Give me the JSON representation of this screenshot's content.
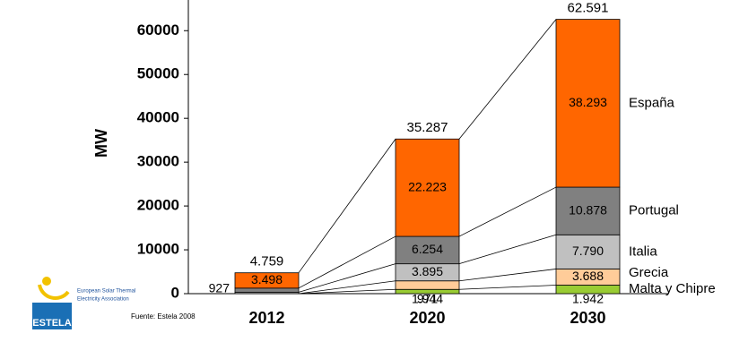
{
  "chart_data": {
    "type": "stacked_bar",
    "y_label": "MW",
    "categories": [
      "2012",
      "2020",
      "2030"
    ],
    "series": [
      {
        "name": "Malta y Chipre",
        "color": "#99cc33",
        "values": [
          0,
          971,
          1942
        ],
        "value_labels": [
          null,
          "971",
          "1.942"
        ]
      },
      {
        "name": "Grecia",
        "color": "#ffcc99",
        "values": [
          0,
          1944,
          3688
        ],
        "value_labels": [
          null,
          "1.944",
          "3.688"
        ]
      },
      {
        "name": "Italia",
        "color": "#c0c0c0",
        "values": [
          334,
          3895,
          7790
        ],
        "value_labels": [
          null,
          "3.895",
          "7.790"
        ]
      },
      {
        "name": "Portugal",
        "color": "#808080",
        "values": [
          927,
          6254,
          10878
        ],
        "value_labels": [
          "927",
          "6.254",
          "10.878"
        ]
      },
      {
        "name": "España",
        "color": "#ff6600",
        "values": [
          3498,
          22223,
          38293
        ],
        "value_labels": [
          "3.498",
          "22.223",
          "38.293"
        ]
      }
    ],
    "totals": {
      "values": [
        4759,
        35287,
        62591
      ],
      "value_labels": [
        "4.759",
        "35.287",
        "62.591"
      ]
    },
    "ylim": [
      0,
      67000
    ],
    "yticks": [
      0,
      10000,
      20000,
      30000,
      40000,
      50000,
      60000
    ],
    "source": "Fuente: Estela 2008",
    "logo": {
      "name": "ESTELA",
      "lines": [
        "European Solar Thermal",
        "Electricity Association"
      ]
    }
  }
}
